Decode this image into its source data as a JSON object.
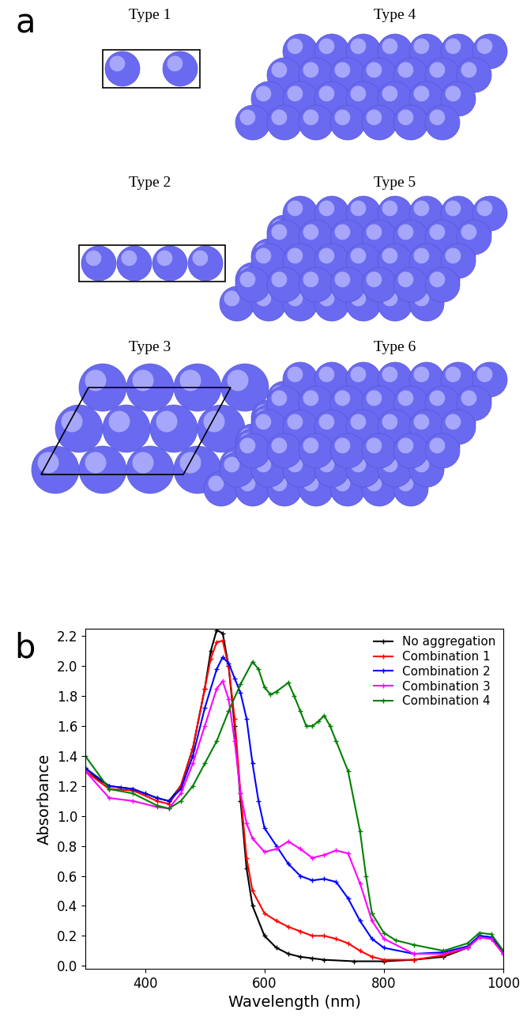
{
  "diagram": {
    "label": "a",
    "types": [
      "Type 1",
      "Type 2",
      "Type 3",
      "Type 4",
      "Type 5",
      "Type 6"
    ]
  },
  "chart_data": {
    "type": "line",
    "title": "b",
    "x_label": "Wavelength (nm)",
    "y_label": "Absorbance",
    "xlim": [
      300,
      1000
    ],
    "xticks": [
      400,
      600,
      800,
      1000
    ],
    "ylim": [
      -0.02,
      2.25
    ],
    "yticks": [
      {
        "value": 0,
        "label": "0.0"
      },
      {
        "value": 0.2,
        "label": "0.2"
      },
      {
        "value": 0.4,
        "label": "0.4"
      },
      {
        "value": 0.6,
        "label": "0.6"
      },
      {
        "value": 0.8,
        "label": "0.8"
      },
      {
        "value": 1.0,
        "label": "1.0"
      },
      {
        "value": 1.2,
        "label": "1.2"
      },
      {
        "value": 1.4,
        "label": "1.4"
      },
      {
        "value": 1.6,
        "label": "1.6"
      },
      {
        "value": 1.8,
        "label": "1.8"
      },
      {
        "value": 2.0,
        "label": "2.0"
      },
      {
        "value": 2.2,
        "label": "2.2"
      }
    ],
    "legend": "upper right",
    "marker": "plus",
    "series": [
      {
        "name": "No aggregation",
        "color": "#000000",
        "x": [
          300,
          320,
          340,
          360,
          380,
          400,
          420,
          440,
          460,
          480,
          500,
          510,
          520,
          530,
          540,
          550,
          560,
          570,
          580,
          600,
          620,
          640,
          660,
          680,
          700,
          750,
          800,
          850,
          900,
          940,
          960,
          980,
          1000
        ],
        "values": [
          1.32,
          1.25,
          1.2,
          1.19,
          1.18,
          1.15,
          1.12,
          1.1,
          1.2,
          1.45,
          1.85,
          2.1,
          2.24,
          2.22,
          2.0,
          1.6,
          1.1,
          0.65,
          0.4,
          0.2,
          0.12,
          0.08,
          0.06,
          0.05,
          0.04,
          0.03,
          0.03,
          0.04,
          0.06,
          0.12,
          0.2,
          0.19,
          0.1
        ]
      },
      {
        "name": "Combination 1",
        "color": "#ff0000",
        "x": [
          300,
          340,
          380,
          420,
          440,
          460,
          480,
          500,
          510,
          520,
          530,
          540,
          550,
          560,
          570,
          580,
          600,
          620,
          640,
          660,
          680,
          700,
          720,
          740,
          760,
          780,
          800,
          850,
          900,
          940,
          960,
          980,
          1000
        ],
        "values": [
          1.3,
          1.18,
          1.17,
          1.1,
          1.08,
          1.2,
          1.45,
          1.85,
          2.05,
          2.16,
          2.17,
          2.0,
          1.65,
          1.15,
          0.72,
          0.5,
          0.35,
          0.3,
          0.26,
          0.23,
          0.2,
          0.2,
          0.18,
          0.15,
          0.1,
          0.06,
          0.04,
          0.04,
          0.07,
          0.12,
          0.19,
          0.18,
          0.08
        ]
      },
      {
        "name": "Combination 2",
        "color": "#0000ff",
        "x": [
          300,
          340,
          380,
          420,
          440,
          460,
          480,
          500,
          520,
          530,
          540,
          550,
          560,
          570,
          580,
          590,
          600,
          620,
          640,
          660,
          680,
          700,
          720,
          740,
          760,
          780,
          800,
          850,
          900,
          940,
          960,
          980,
          1000
        ],
        "values": [
          1.32,
          1.2,
          1.18,
          1.12,
          1.1,
          1.18,
          1.4,
          1.72,
          1.98,
          2.06,
          2.02,
          1.92,
          1.82,
          1.65,
          1.35,
          1.1,
          0.92,
          0.8,
          0.68,
          0.6,
          0.57,
          0.58,
          0.56,
          0.45,
          0.3,
          0.18,
          0.12,
          0.08,
          0.09,
          0.13,
          0.2,
          0.19,
          0.08
        ]
      },
      {
        "name": "Combination 3",
        "color": "#ff00ff",
        "x": [
          300,
          340,
          380,
          420,
          440,
          460,
          480,
          500,
          520,
          530,
          540,
          550,
          560,
          570,
          580,
          600,
          620,
          640,
          660,
          680,
          700,
          720,
          740,
          760,
          780,
          800,
          850,
          900,
          940,
          960,
          980,
          1000
        ],
        "values": [
          1.3,
          1.12,
          1.1,
          1.06,
          1.05,
          1.15,
          1.35,
          1.6,
          1.85,
          1.9,
          1.78,
          1.5,
          1.15,
          0.95,
          0.85,
          0.76,
          0.78,
          0.83,
          0.78,
          0.72,
          0.74,
          0.77,
          0.75,
          0.55,
          0.3,
          0.18,
          0.08,
          0.08,
          0.12,
          0.19,
          0.18,
          0.08
        ]
      },
      {
        "name": "Combination 4",
        "color": "#008000",
        "x": [
          300,
          340,
          380,
          420,
          440,
          460,
          480,
          500,
          520,
          540,
          560,
          580,
          590,
          600,
          610,
          620,
          640,
          650,
          660,
          670,
          680,
          690,
          700,
          710,
          720,
          740,
          760,
          770,
          780,
          800,
          820,
          850,
          900,
          940,
          960,
          980,
          1000
        ],
        "values": [
          1.4,
          1.18,
          1.15,
          1.07,
          1.05,
          1.1,
          1.2,
          1.35,
          1.5,
          1.7,
          1.88,
          2.03,
          1.98,
          1.86,
          1.81,
          1.83,
          1.89,
          1.8,
          1.7,
          1.6,
          1.6,
          1.63,
          1.67,
          1.6,
          1.5,
          1.3,
          0.9,
          0.6,
          0.35,
          0.22,
          0.17,
          0.14,
          0.1,
          0.15,
          0.22,
          0.21,
          0.1
        ]
      }
    ]
  }
}
